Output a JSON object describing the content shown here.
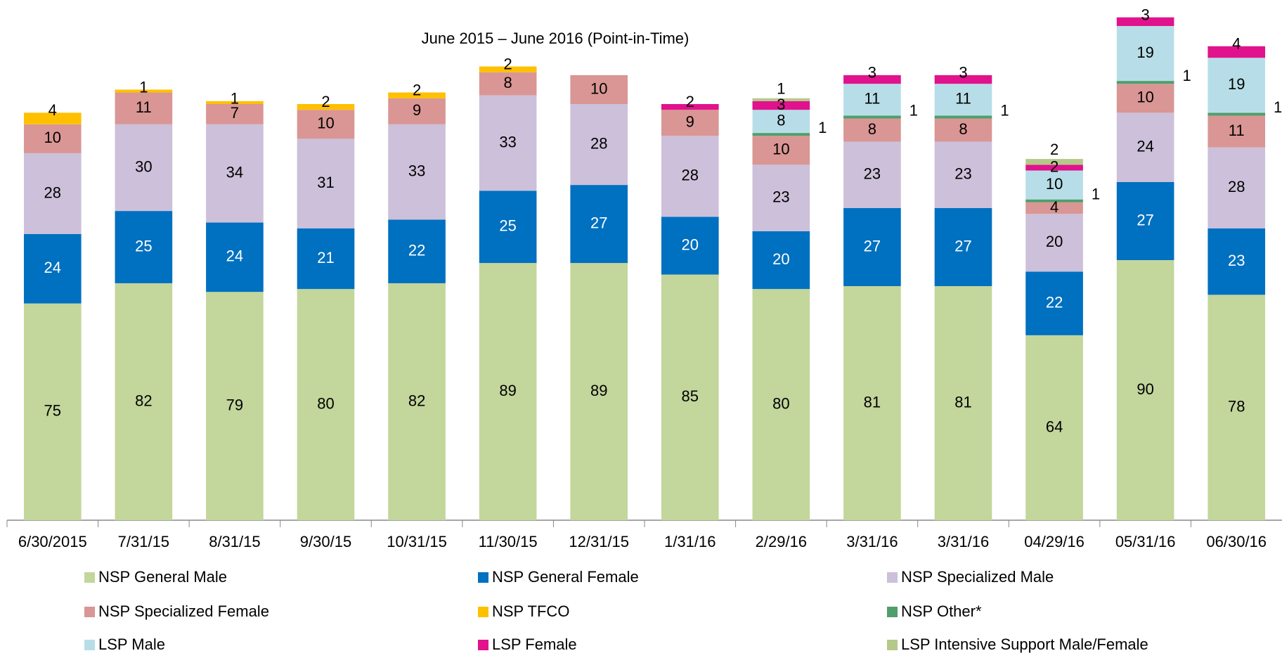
{
  "chart_data": {
    "type": "stacked_bar",
    "subtitle": "June 2015 – June 2016 (Point-in-Time)",
    "categories": [
      "6/30/2015",
      "7/31/15",
      "8/31/15",
      "9/30/15",
      "10/31/15",
      "11/30/15",
      "12/31/15",
      "1/31/16",
      "2/29/16",
      "3/31/16",
      "3/31/16",
      "04/29/16",
      "05/31/16",
      "06/30/16"
    ],
    "ylim": [
      0,
      180
    ],
    "series": [
      {
        "name": "NSP General Male",
        "color": "#c3d69b",
        "values": [
          75,
          82,
          79,
          80,
          82,
          89,
          89,
          85,
          80,
          81,
          81,
          64,
          90,
          78
        ]
      },
      {
        "name": "NSP General Female",
        "color": "#0070c0",
        "values": [
          24,
          25,
          24,
          21,
          22,
          25,
          27,
          20,
          20,
          27,
          27,
          22,
          27,
          23
        ]
      },
      {
        "name": "NSP Specialized Male",
        "color": "#ccc0da",
        "values": [
          28,
          30,
          34,
          31,
          33,
          33,
          28,
          28,
          23,
          23,
          23,
          20,
          24,
          28
        ]
      },
      {
        "name": "NSP Specialized Female",
        "color": "#d99694",
        "values": [
          10,
          11,
          7,
          10,
          9,
          8,
          10,
          9,
          10,
          8,
          8,
          4,
          10,
          11
        ]
      },
      {
        "name": "NSP TFCO",
        "color": "#ffc000",
        "values": [
          4,
          1,
          1,
          2,
          2,
          2,
          null,
          null,
          null,
          null,
          null,
          null,
          null,
          null
        ]
      },
      {
        "name": "NSP Other*",
        "color": "#4f9e6b",
        "values": [
          null,
          null,
          null,
          null,
          null,
          null,
          null,
          null,
          1,
          1,
          1,
          1,
          1,
          1
        ]
      },
      {
        "name": "LSP  Male",
        "color": "#b7dee8",
        "values": [
          null,
          null,
          null,
          null,
          null,
          null,
          null,
          null,
          8,
          11,
          11,
          10,
          19,
          19
        ]
      },
      {
        "name": "LSP Female",
        "color": "#e0138c",
        "values": [
          null,
          null,
          null,
          null,
          null,
          null,
          null,
          2,
          3,
          3,
          3,
          2,
          3,
          4
        ]
      },
      {
        "name": "LSP Intensive Support Male/Female",
        "color": "#b5c98a",
        "values": [
          null,
          null,
          null,
          null,
          null,
          null,
          null,
          null,
          1,
          null,
          null,
          2,
          null,
          null
        ]
      }
    ]
  }
}
